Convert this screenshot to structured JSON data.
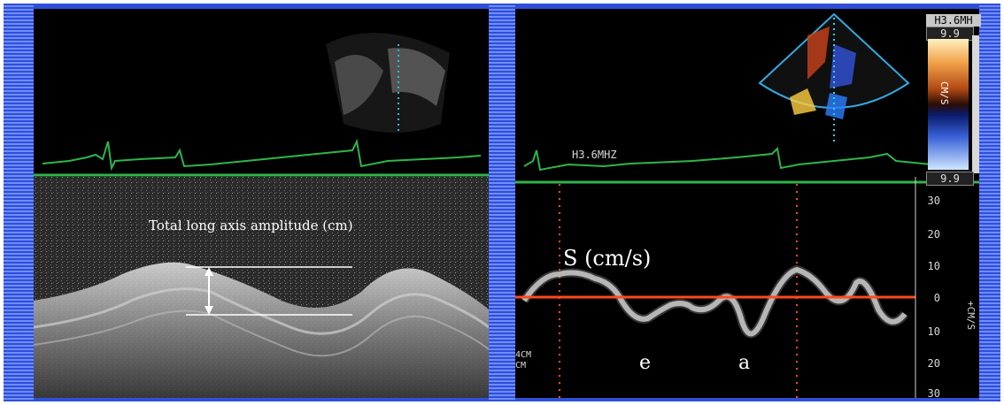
{
  "left_panel": {
    "annotation": "Total long axis amplitude (cm)"
  },
  "right_panel": {
    "freq_top": "H3.6MH",
    "scale_top": "9.9",
    "scale_bottom": "9.9",
    "colorbar_unit": "CM/S",
    "freq_label": "H3.6MHZ",
    "velocity_label": "S (cm/s)",
    "wave_e": "e",
    "wave_a": "a",
    "depth_label_1": "4CM",
    "depth_label_2": "CM",
    "axis_unit": "+CM/S",
    "axis_ticks": [
      "30",
      "20",
      "10",
      "0",
      "10",
      "20",
      "30"
    ]
  },
  "colors": {
    "frame_blue": "#2f4fd8",
    "ecg_green": "#2fb54a",
    "baseline_red": "#ff4a1a",
    "annotation_white": "#ffffff"
  }
}
